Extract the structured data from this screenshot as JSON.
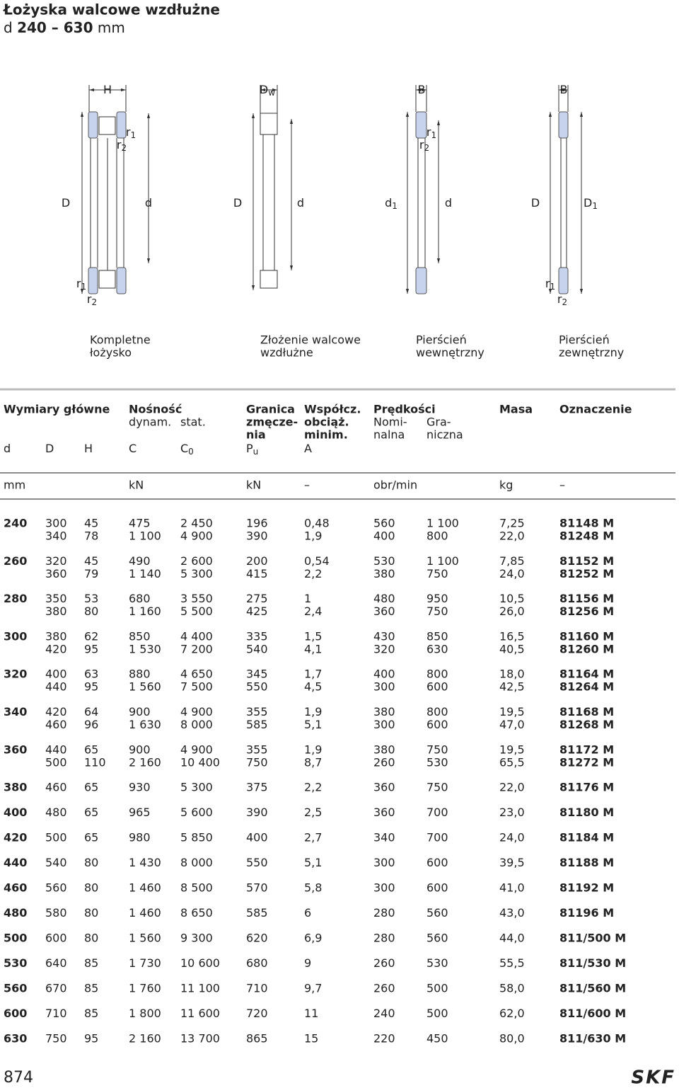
{
  "header": {
    "title": "Łożyska walcowe wzdłużne",
    "subtitle": {
      "symbol": "d",
      "range": "240 – 630",
      "unit": "mm"
    }
  },
  "diagrams": {
    "labels": [
      {
        "text": "H"
      },
      {
        "text": "r",
        "sub": "1"
      },
      {
        "text": "r",
        "sub": "2"
      },
      {
        "text": "D"
      },
      {
        "text": "d"
      },
      {
        "text": "r",
        "sub": "1"
      },
      {
        "text": "r",
        "sub": "2"
      },
      {
        "text": "D",
        "sub": "w"
      },
      {
        "text": "D"
      },
      {
        "text": "d"
      },
      {
        "text": "B"
      },
      {
        "text": "r",
        "sub": "1"
      },
      {
        "text": "r",
        "sub": "2"
      },
      {
        "text": "d",
        "sub": "1"
      },
      {
        "text": "d"
      },
      {
        "text": "B"
      },
      {
        "text": "D"
      },
      {
        "text": "D",
        "sub": "1"
      },
      {
        "text": "r",
        "sub": "1"
      },
      {
        "text": "r",
        "sub": "2"
      }
    ],
    "captions": [
      [
        "Kompletne",
        "łożysko"
      ],
      [
        "Złożenie walcowe",
        "wzdłużne"
      ],
      [
        "Pierścień",
        "wewnętrzny"
      ],
      [
        "Pierścień",
        "zewnętrzny"
      ]
    ]
  },
  "table": {
    "headings": [
      "Wymiary główne",
      "Nośność",
      "Granica",
      "Współcz.",
      "Prędkości",
      "Masa",
      "Oznaczenie"
    ],
    "sub_headings": [
      "dynam.",
      "stat.",
      "zmęcze-",
      "obciąż.",
      "Nomi-",
      "Gra-"
    ],
    "sub_headings_2": [
      "nia",
      "minim.",
      "nalna",
      "niczna"
    ],
    "symbols": [
      {
        "text": "d"
      },
      {
        "text": "D"
      },
      {
        "text": "H"
      },
      {
        "text": "C"
      },
      {
        "text": "C",
        "sub": "0"
      },
      {
        "text": "P",
        "sub": "u"
      },
      {
        "text": "A"
      }
    ],
    "units": [
      "mm",
      "kN",
      "kN",
      "–",
      "obr/min",
      "kg",
      "–"
    ],
    "groups": [
      {
        "d": "240",
        "rows": [
          [
            "300",
            "45",
            "475",
            "2 450",
            "196",
            "0,48",
            "560",
            "1 100",
            "7,25",
            "81148 M"
          ],
          [
            "340",
            "78",
            "1 100",
            "4 900",
            "390",
            "1,9",
            "400",
            "800",
            "22,0",
            "81248 M"
          ]
        ]
      },
      {
        "d": "260",
        "rows": [
          [
            "320",
            "45",
            "490",
            "2 600",
            "200",
            "0,54",
            "530",
            "1 100",
            "7,85",
            "81152 M"
          ],
          [
            "360",
            "79",
            "1 140",
            "5 300",
            "415",
            "2,2",
            "380",
            "750",
            "24,0",
            "81252 M"
          ]
        ]
      },
      {
        "d": "280",
        "rows": [
          [
            "350",
            "53",
            "680",
            "3 550",
            "275",
            "1",
            "480",
            "950",
            "10,5",
            "81156 M"
          ],
          [
            "380",
            "80",
            "1 160",
            "5 500",
            "425",
            "2,4",
            "360",
            "750",
            "26,0",
            "81256 M"
          ]
        ]
      },
      {
        "d": "300",
        "rows": [
          [
            "380",
            "62",
            "850",
            "4 400",
            "335",
            "1,5",
            "430",
            "850",
            "16,5",
            "81160 M"
          ],
          [
            "420",
            "95",
            "1 530",
            "7 200",
            "540",
            "4,1",
            "320",
            "630",
            "40,5",
            "81260 M"
          ]
        ]
      },
      {
        "d": "320",
        "rows": [
          [
            "400",
            "63",
            "880",
            "4 650",
            "345",
            "1,7",
            "400",
            "800",
            "18,0",
            "81164 M"
          ],
          [
            "440",
            "95",
            "1 560",
            "7 500",
            "550",
            "4,5",
            "300",
            "600",
            "42,5",
            "81264 M"
          ]
        ]
      },
      {
        "d": "340",
        "rows": [
          [
            "420",
            "64",
            "900",
            "4 900",
            "355",
            "1,9",
            "380",
            "800",
            "19,5",
            "81168 M"
          ],
          [
            "460",
            "96",
            "1 630",
            "8 000",
            "585",
            "5,1",
            "300",
            "600",
            "47,0",
            "81268 M"
          ]
        ]
      },
      {
        "d": "360",
        "rows": [
          [
            "440",
            "65",
            "900",
            "4 900",
            "355",
            "1,9",
            "380",
            "750",
            "19,5",
            "81172 M"
          ],
          [
            "500",
            "110",
            "2 160",
            "10 400",
            "750",
            "8,7",
            "260",
            "530",
            "65,5",
            "81272 M"
          ]
        ]
      },
      {
        "d": "380",
        "rows": [
          [
            "460",
            "65",
            "930",
            "5 300",
            "375",
            "2,2",
            "360",
            "750",
            "22,0",
            "81176 M"
          ]
        ]
      },
      {
        "d": "400",
        "rows": [
          [
            "480",
            "65",
            "965",
            "5 600",
            "390",
            "2,5",
            "360",
            "700",
            "23,0",
            "81180 M"
          ]
        ]
      },
      {
        "d": "420",
        "rows": [
          [
            "500",
            "65",
            "980",
            "5 850",
            "400",
            "2,7",
            "340",
            "700",
            "24,0",
            "81184 M"
          ]
        ]
      },
      {
        "d": "440",
        "rows": [
          [
            "540",
            "80",
            "1 430",
            "8 000",
            "550",
            "5,1",
            "300",
            "600",
            "39,5",
            "81188 M"
          ]
        ]
      },
      {
        "d": "460",
        "rows": [
          [
            "560",
            "80",
            "1 460",
            "8 500",
            "570",
            "5,8",
            "300",
            "600",
            "41,0",
            "81192 M"
          ]
        ]
      },
      {
        "d": "480",
        "rows": [
          [
            "580",
            "80",
            "1 460",
            "8 650",
            "585",
            "6",
            "280",
            "560",
            "43,0",
            "81196 M"
          ]
        ]
      },
      {
        "d": "500",
        "rows": [
          [
            "600",
            "80",
            "1 560",
            "9 300",
            "620",
            "6,9",
            "280",
            "560",
            "44,0",
            "811/500 M"
          ]
        ]
      },
      {
        "d": "530",
        "rows": [
          [
            "640",
            "85",
            "1 730",
            "10 600",
            "680",
            "9",
            "260",
            "530",
            "55,5",
            "811/530 M"
          ]
        ]
      },
      {
        "d": "560",
        "rows": [
          [
            "670",
            "85",
            "1 760",
            "11 100",
            "710",
            "9,7",
            "260",
            "500",
            "58,0",
            "811/560 M"
          ]
        ]
      },
      {
        "d": "600",
        "rows": [
          [
            "710",
            "85",
            "1 800",
            "11 600",
            "720",
            "11",
            "240",
            "500",
            "62,0",
            "811/600 M"
          ]
        ]
      },
      {
        "d": "630",
        "rows": [
          [
            "750",
            "95",
            "2 160",
            "13 700",
            "865",
            "15",
            "220",
            "450",
            "80,0",
            "811/630 M"
          ]
        ]
      }
    ]
  },
  "footer": {
    "page": "874",
    "logo": "SKF"
  }
}
